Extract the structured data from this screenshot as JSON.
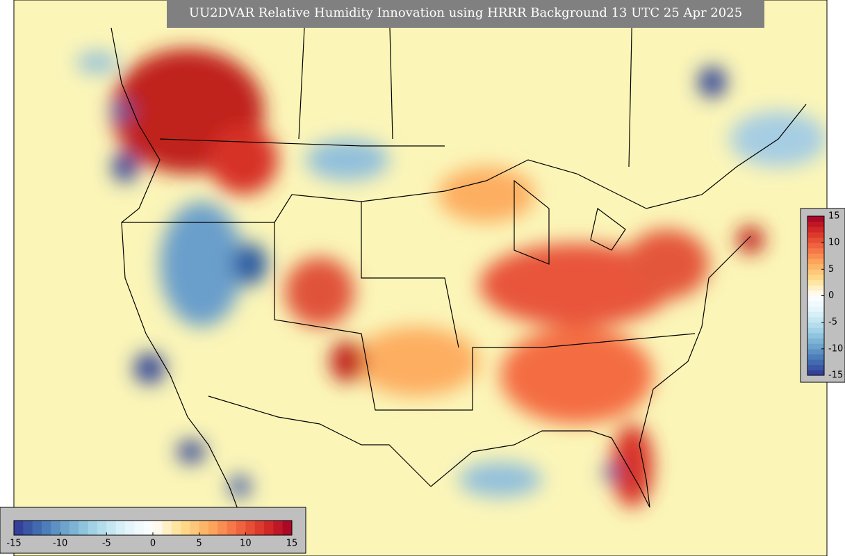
{
  "title": "UU2DVAR Relative Humidity Innovation using HRRR Background 13 UTC 25 Apr 2025",
  "colorbar": {
    "range": [
      -15,
      15
    ],
    "ticks": [
      -15,
      -10,
      -5,
      0,
      5,
      10,
      15
    ],
    "colors": [
      "#313695",
      "#4575b4",
      "#74add1",
      "#abd9e9",
      "#e0f3f8",
      "#ffffff",
      "#fee090",
      "#fdae61",
      "#f46d43",
      "#d73027",
      "#a50026"
    ]
  }
}
